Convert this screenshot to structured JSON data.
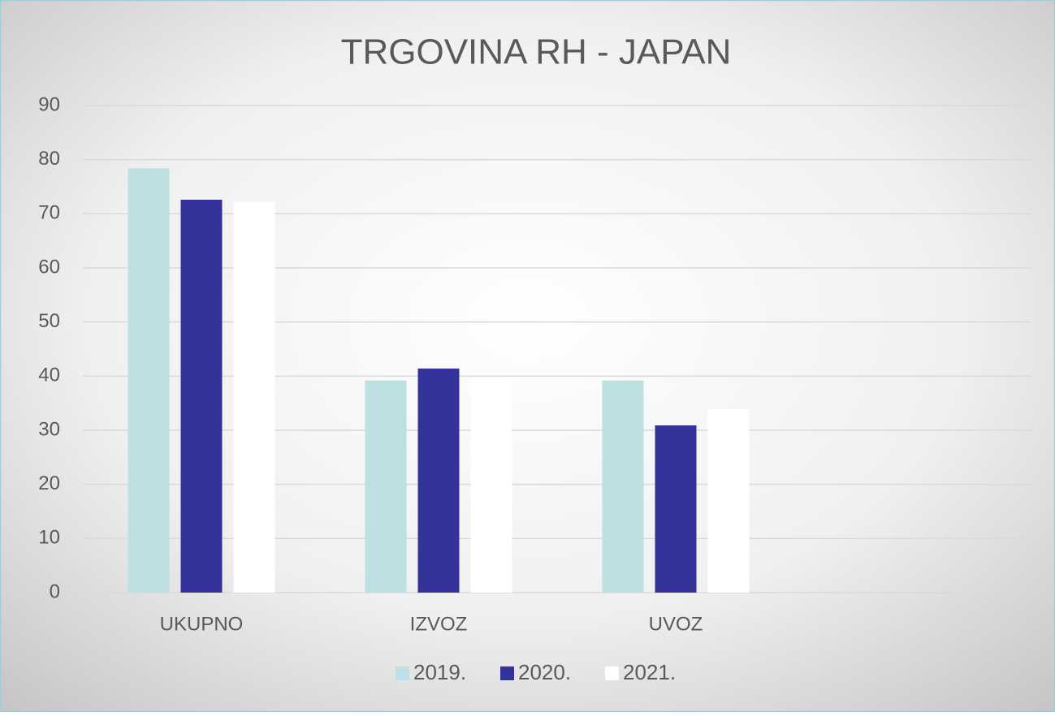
{
  "chart_data": {
    "type": "bar",
    "title": "TRGOVINA RH - JAPAN",
    "categories": [
      "UKUPNO",
      "IZVOZ",
      "UVOZ",
      null
    ],
    "series": [
      {
        "name": "2019.",
        "color": "#bde0e3",
        "values": [
          78.4,
          39.2,
          39.2,
          null
        ]
      },
      {
        "name": "2020.",
        "color": "#333399",
        "values": [
          72.6,
          41.4,
          30.9,
          null
        ]
      },
      {
        "name": "2021.",
        "color": "#ffffff",
        "values": [
          72.2,
          39.5,
          33.9,
          null
        ]
      }
    ],
    "ylim": [
      0,
      90
    ],
    "yticks": [
      0,
      10,
      20,
      30,
      40,
      50,
      60,
      70,
      80,
      90
    ],
    "grid": true,
    "legend": "bottom"
  }
}
